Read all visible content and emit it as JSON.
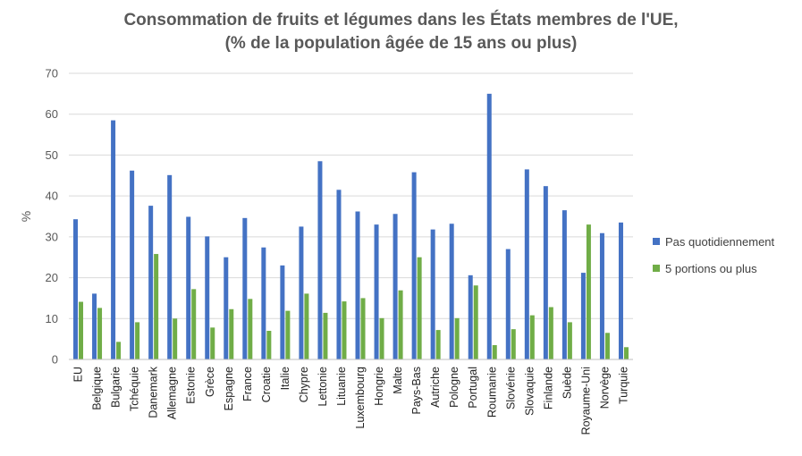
{
  "chart_data": {
    "type": "bar",
    "title_lines": [
      "Consommation de fruits et légumes dans les États membres de l'UE,",
      "(% de la population âgée de 15 ans ou plus)"
    ],
    "ylabel": "%",
    "xlabel": "",
    "ylim": [
      0,
      70
    ],
    "yticks": [
      0,
      10,
      20,
      30,
      40,
      50,
      60,
      70
    ],
    "grid": true,
    "legend_position": "right",
    "categories": [
      "EU",
      "Belgique",
      "Bulgarie",
      "Tchéquie",
      "Danemark",
      "Allemagne",
      "Estonie",
      "Grèce",
      "Espagne",
      "France",
      "Croatie",
      "Italie",
      "Chypre",
      "Lettonie",
      "Lituanie",
      "Luxembourg",
      "Hongrie",
      "Malte",
      "Pays-Bas",
      "Autriche",
      "Pologne",
      "Portugal",
      "Roumanie",
      "Slovénie",
      "Slovaquie",
      "Finlande",
      "Suède",
      "Royaume-Uni",
      "Norvège",
      "Turquie"
    ],
    "series": [
      {
        "name": "Pas quotidiennement",
        "color": "#4472C4",
        "values": [
          34.3,
          16.1,
          58.5,
          46.2,
          37.6,
          45.1,
          34.9,
          30.1,
          25.0,
          34.6,
          27.4,
          23.0,
          32.5,
          48.5,
          41.5,
          36.2,
          33.0,
          35.6,
          45.8,
          31.8,
          33.2,
          20.6,
          65.0,
          27.0,
          46.5,
          42.4,
          36.5,
          21.2,
          30.9,
          33.5
        ]
      },
      {
        "name": "5 portions ou plus",
        "color": "#70AD47",
        "values": [
          14.1,
          12.6,
          4.3,
          9.1,
          25.8,
          10.0,
          17.2,
          7.8,
          12.3,
          14.8,
          7.0,
          11.9,
          16.1,
          11.4,
          14.2,
          15.0,
          10.1,
          16.9,
          25.0,
          7.2,
          10.1,
          18.1,
          3.5,
          7.4,
          10.8,
          12.8,
          9.1,
          33.0,
          6.5,
          3.0
        ]
      }
    ]
  }
}
